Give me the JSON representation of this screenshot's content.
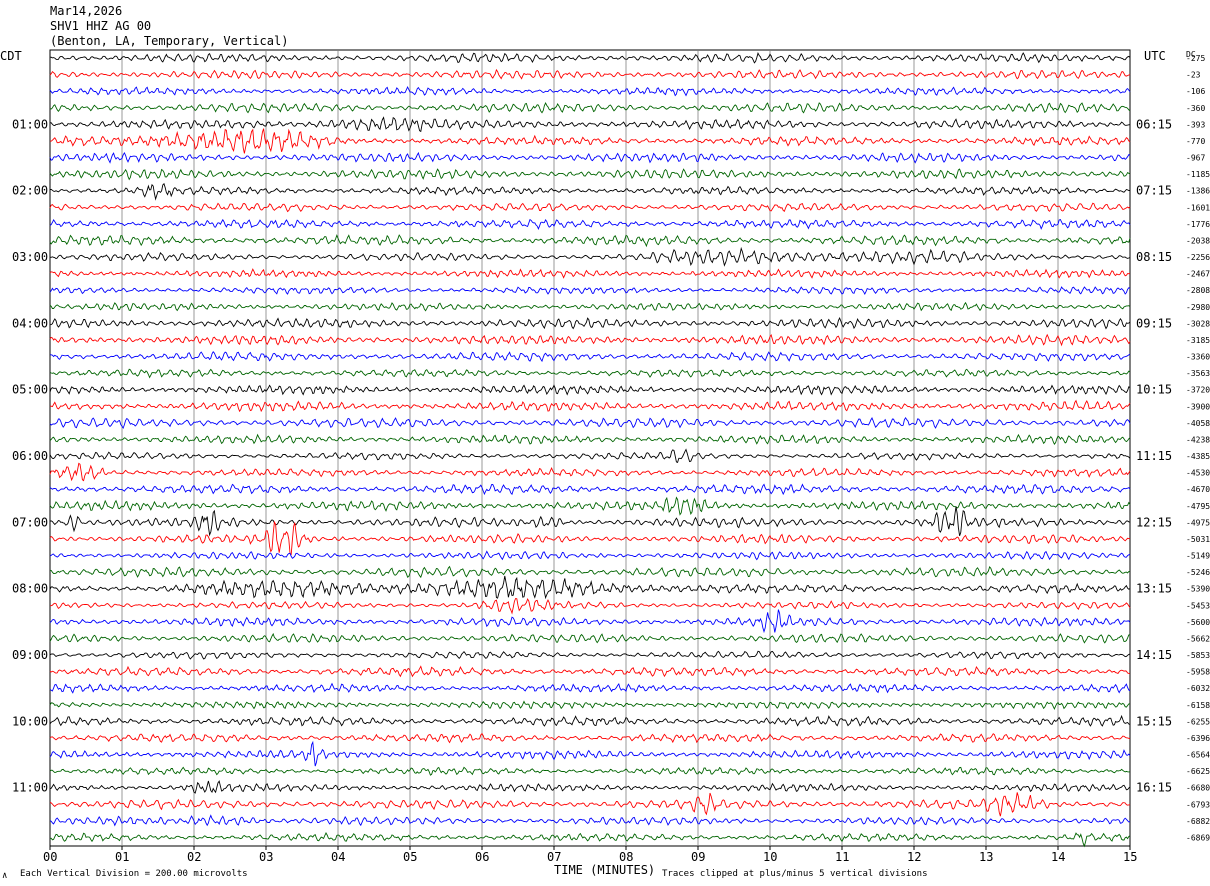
{
  "header": {
    "date": "Mar14,2026",
    "station": "SHV1 HHZ AG 00",
    "location": "(Benton, LA, Temporary, Vertical)"
  },
  "left_tz": "CDT",
  "right_tz": "UTC",
  "dc_header": "DC",
  "footer": {
    "scale_note": "Each Vertical Division =  200.00 microvolts",
    "clip_note": "Traces clipped at plus/minus 5 vertical divisions",
    "corner_mark": "∧"
  },
  "colors": {
    "trace_cycle": [
      "#000000",
      "#ff0000",
      "#0000ff",
      "#006400"
    ],
    "grid": "#808080"
  },
  "chart_data": {
    "type": "line",
    "title": "",
    "xlabel": "TIME (MINUTES)",
    "ylabel": "",
    "xlim": [
      0,
      15
    ],
    "x_ticks": [
      "00",
      "01",
      "02",
      "03",
      "04",
      "05",
      "06",
      "07",
      "08",
      "09",
      "10",
      "11",
      "12",
      "13",
      "14",
      "15"
    ],
    "rows_per_hour": 4,
    "n_rows": 48,
    "left_hour_labels": [
      "01:00",
      "02:00",
      "03:00",
      "04:00",
      "05:00",
      "06:00",
      "07:00",
      "08:00",
      "09:00",
      "10:00",
      "11:00"
    ],
    "left_label_rows": [
      4,
      8,
      12,
      16,
      20,
      24,
      28,
      32,
      36,
      40,
      44
    ],
    "right_hour_labels": [
      "06:15",
      "07:15",
      "08:15",
      "09:15",
      "10:15",
      "11:15",
      "12:15",
      "13:15",
      "14:15",
      "15:15",
      "16:15"
    ],
    "right_label_rows": [
      4,
      8,
      12,
      16,
      20,
      24,
      28,
      32,
      36,
      40,
      44
    ],
    "dc_offsets": [
      -275,
      -23,
      -106,
      -360,
      -393,
      -770,
      -967,
      -1185,
      -1386,
      -1601,
      -1776,
      -2038,
      -2256,
      -2467,
      -2808,
      -2980,
      -3028,
      -3185,
      -3360,
      -3563,
      -3720,
      -3900,
      -4058,
      -4238,
      -4385,
      -4530,
      -4670,
      -4795,
      -4975,
      -5031,
      -5149,
      -5246,
      -5390,
      -5453,
      -5600,
      -5662,
      -5853,
      -5958,
      -6032,
      -6158,
      -6255,
      -6396,
      -6564,
      -6625,
      -6680,
      -6793,
      -6882,
      -6869
    ],
    "events": [
      {
        "row": 4,
        "start": 3.5,
        "end": 6.0,
        "amp": 1.5
      },
      {
        "row": 5,
        "start": 0.0,
        "end": 5.5,
        "amp": 2.2
      },
      {
        "row": 8,
        "start": 1.2,
        "end": 1.9,
        "amp": 1.6
      },
      {
        "row": 12,
        "start": 8.0,
        "end": 14.5,
        "amp": 1.6
      },
      {
        "row": 24,
        "start": 8.5,
        "end": 9.2,
        "amp": 1.4
      },
      {
        "row": 25,
        "start": 0.1,
        "end": 1.0,
        "amp": 2.5
      },
      {
        "row": 27,
        "start": 8.4,
        "end": 9.6,
        "amp": 1.5
      },
      {
        "row": 28,
        "start": 0.1,
        "end": 0.6,
        "amp": 3.0
      },
      {
        "row": 28,
        "start": 2.0,
        "end": 2.5,
        "amp": 2.5
      },
      {
        "row": 28,
        "start": 6.7,
        "end": 7.3,
        "amp": 2.0
      },
      {
        "row": 28,
        "start": 12.2,
        "end": 13.0,
        "amp": 3.0
      },
      {
        "row": 29,
        "start": 2.9,
        "end": 3.9,
        "amp": 4.0
      },
      {
        "row": 32,
        "start": 1.2,
        "end": 12.5,
        "amp": 1.8
      },
      {
        "row": 33,
        "start": 5.8,
        "end": 7.5,
        "amp": 1.4
      },
      {
        "row": 34,
        "start": 9.8,
        "end": 10.5,
        "amp": 1.8
      },
      {
        "row": 42,
        "start": 3.5,
        "end": 3.9,
        "amp": 2.4
      },
      {
        "row": 44,
        "start": 1.8,
        "end": 2.8,
        "amp": 1.6
      },
      {
        "row": 45,
        "start": 8.9,
        "end": 9.4,
        "amp": 1.8
      },
      {
        "row": 45,
        "start": 12.9,
        "end": 14.2,
        "amp": 1.8
      },
      {
        "row": 46,
        "start": 1.8,
        "end": 3.5,
        "amp": 1.6
      },
      {
        "row": 47,
        "start": 14.2,
        "end": 14.6,
        "amp": 2.0
      }
    ]
  }
}
